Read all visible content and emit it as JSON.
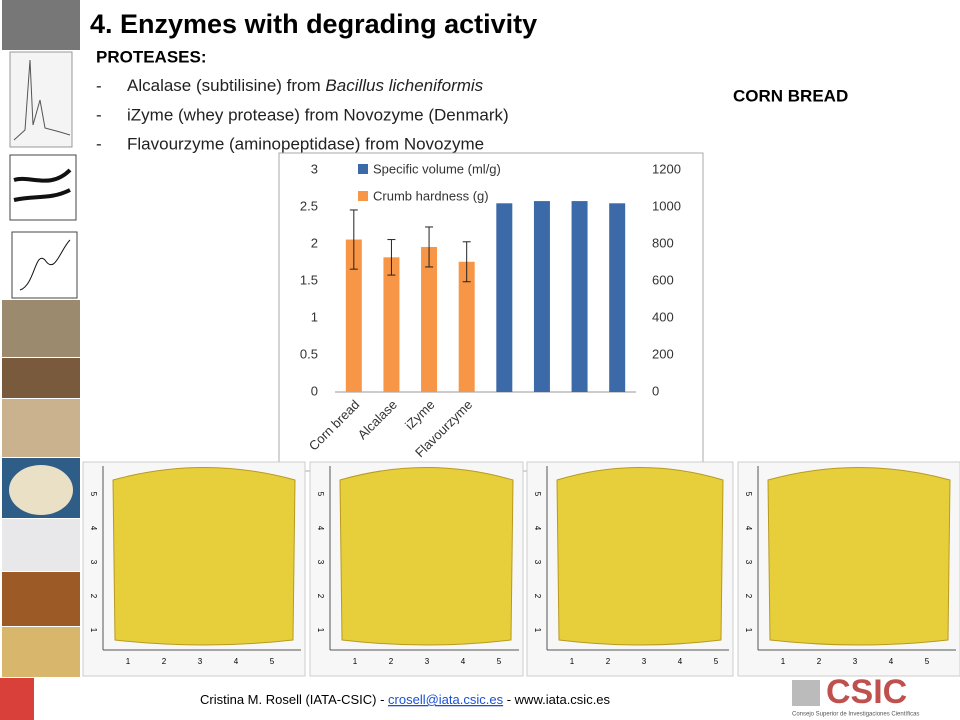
{
  "slide": {
    "title": "4.   Enzymes with degrading activity",
    "heading": "PROTEASES:",
    "items": [
      {
        "text": "Alcalase (subtilisine) from ",
        "species": "Bacillus licheniformis"
      },
      {
        "text": "iZyme (whey protease) from Novozyme (Denmark)"
      },
      {
        "text": "Flavourzyme (aminopeptidase) from Novozyme"
      }
    ],
    "bullet": "-",
    "side_label": "CORN BREAD",
    "ruler_labels": [
      "1",
      "2",
      "3",
      "4",
      "5"
    ],
    "footer": {
      "author": "Cristina M. Rosell  (IATA-CSIC) - ",
      "email": "crosell@iata.csic.es",
      "sep": " - ",
      "web": "www.iata.csic.es"
    },
    "logo": {
      "name": "CSIC",
      "subtitle": "Consejo Superior de Investigaciones Científicas"
    }
  },
  "chart_data": {
    "type": "bar",
    "categories": [
      "Corn bread",
      "Alcalase",
      "iZyme",
      "Flavourzyme",
      null,
      null,
      null,
      null
    ],
    "series": [
      {
        "name": "Specific volume (ml/g)",
        "color": "#3c6aa8",
        "values": [
          null,
          null,
          null,
          null,
          2.55,
          2.58,
          2.58,
          2.55
        ]
      },
      {
        "name": "Crumb hardness (g)",
        "color": "#f79646",
        "axis": "y2",
        "values": [
          824,
          728,
          784,
          704,
          null,
          null,
          null,
          null
        ],
        "errors": [
          160,
          96,
          108,
          108,
          null,
          null,
          null,
          null
        ]
      }
    ],
    "ylim": [
      0,
      3
    ],
    "yticks": [
      0,
      0.5,
      1,
      1.5,
      2,
      2.5,
      3
    ],
    "y2lim": [
      0,
      1200
    ],
    "y2ticks": [
      0,
      200,
      400,
      600,
      800,
      1000,
      1200
    ],
    "legend": "upper left"
  }
}
